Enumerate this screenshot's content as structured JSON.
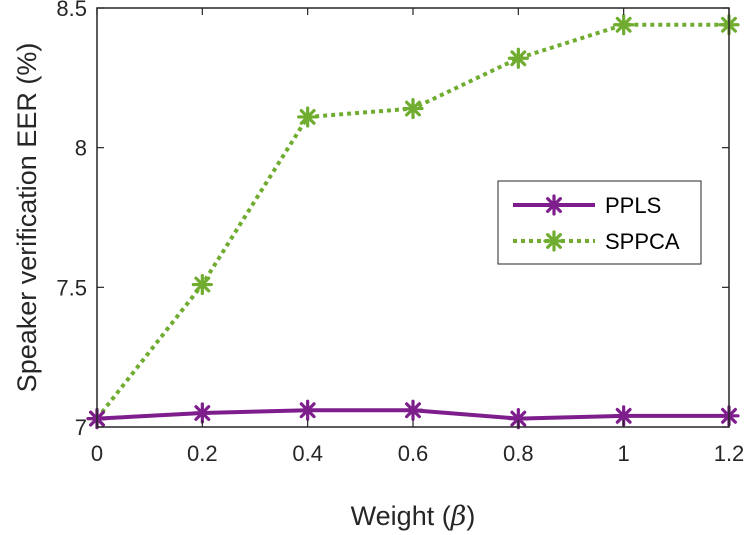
{
  "chart_data": {
    "type": "line",
    "x": [
      0,
      0.2,
      0.4,
      0.6,
      0.8,
      1,
      1.2
    ],
    "x_tick_labels": [
      "0",
      "0.2",
      "0.4",
      "0.6",
      "0.8",
      "1",
      "1.2"
    ],
    "y_ticks": [
      7,
      7.5,
      8,
      8.5
    ],
    "y_tick_labels": [
      "7",
      "7.5",
      "8",
      "8.5"
    ],
    "xlim": [
      0,
      1.2
    ],
    "ylim": [
      7,
      8.5
    ],
    "xlabel_text": "Weight (",
    "xlabel_symbol": "β",
    "xlabel_close": ")",
    "ylabel": "Speaker verification EER (%)",
    "grid": false,
    "legend_position": "right",
    "series": [
      {
        "name": "PPLS",
        "color": "#7e1e8c",
        "line_style": "solid",
        "marker": "asterisk",
        "values": [
          7.03,
          7.05,
          7.06,
          7.06,
          7.03,
          7.04,
          7.04
        ]
      },
      {
        "name": "SPPCA",
        "color": "#6fac2f",
        "line_style": "dotted",
        "marker": "asterisk",
        "values": [
          7.03,
          7.51,
          8.11,
          8.14,
          8.32,
          8.44,
          8.44
        ]
      }
    ]
  }
}
